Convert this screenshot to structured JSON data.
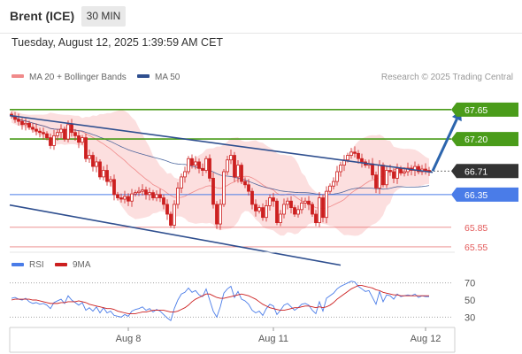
{
  "header": {
    "instrument": "Brent (ICE)",
    "timeframe": "30 MIN",
    "datetime": "Tuesday, August 12, 2025 1:39:59 AM CET"
  },
  "legend": {
    "bollinger_label": "MA 20 + Bollinger Bands",
    "ma50_label": "MA 50",
    "credit": "Research © 2025 Trading Central"
  },
  "colors": {
    "candle": "#cc1f1f",
    "bollinger_fill": "#fcd9d9",
    "bollinger_line": "#f08a8a",
    "ma50": "#2f4f8f",
    "resistance": "#4a9c1a",
    "support": "#4a7ce8",
    "support_minor": "#f19a9a",
    "current": "#333333",
    "trend": "#2f4f8f",
    "arrow": "#2c65ad",
    "rsi": "#4a7ce8",
    "rsi_ma": "#cc1f1f"
  },
  "chart_data": [
    {
      "type": "candlestick",
      "x_ticks": [
        "Aug 8",
        "Aug 11",
        "Aug 12"
      ],
      "ylim": [
        65.4,
        68.0
      ],
      "levels": [
        {
          "name": "resistance-2",
          "value": 67.65,
          "label": "67.65",
          "color": "#4a9c1a",
          "label_style": "filled"
        },
        {
          "name": "resistance-1",
          "value": 67.2,
          "label": "67.20",
          "color": "#4a9c1a",
          "label_style": "filled"
        },
        {
          "name": "last-price",
          "value": 66.71,
          "label": "66.71",
          "color": "#333333",
          "label_style": "filled"
        },
        {
          "name": "pivot",
          "value": 66.35,
          "label": "66.35",
          "color": "#4a7ce8",
          "label_style": "filled"
        },
        {
          "name": "support-1",
          "value": 65.85,
          "label": "65.85",
          "color": "#e35a5a",
          "label_style": "text"
        },
        {
          "name": "support-2",
          "value": 65.55,
          "label": "65.55",
          "color": "#e35a5a",
          "label_style": "text"
        }
      ],
      "trendlines": [
        {
          "name": "upper-channel",
          "from": [
            0,
            67.56
          ],
          "to": [
            119,
            66.69
          ]
        },
        {
          "name": "lower-channel",
          "from": [
            0,
            66.19
          ],
          "to": [
            93,
            65.27
          ]
        }
      ],
      "projection": {
        "from": [
          119,
          66.71
        ],
        "to": [
          127,
          67.64
        ]
      },
      "closes": [
        67.55,
        67.5,
        67.47,
        67.42,
        67.44,
        67.38,
        67.35,
        67.32,
        67.3,
        67.28,
        67.22,
        67.1,
        67.25,
        67.3,
        67.35,
        67.2,
        67.42,
        67.3,
        67.25,
        67.15,
        67.22,
        66.9,
        66.95,
        66.78,
        66.85,
        66.62,
        66.72,
        66.55,
        66.58,
        66.35,
        66.3,
        66.28,
        66.32,
        66.25,
        66.36,
        66.38,
        66.4,
        66.42,
        66.35,
        66.38,
        66.3,
        66.35,
        66.3,
        66.2,
        66.05,
        65.88,
        66.2,
        66.45,
        66.62,
        66.7,
        66.9,
        66.8,
        66.85,
        66.75,
        66.72,
        66.9,
        66.6,
        66.2,
        65.9,
        66.2,
        66.7,
        66.88,
        66.95,
        66.62,
        66.8,
        66.55,
        66.5,
        66.4,
        66.2,
        66.1,
        66.15,
        66.0,
        66.18,
        66.3,
        66.25,
        65.92,
        66.05,
        66.2,
        66.25,
        66.15,
        66.05,
        66.12,
        66.22,
        66.25,
        66.2,
        66.05,
        65.92,
        66.3,
        66.0,
        66.4,
        66.48,
        66.55,
        66.7,
        66.8,
        66.88,
        66.95,
        67.0,
        66.98,
        66.9,
        66.85,
        66.8,
        66.82,
        66.65,
        66.45,
        66.8,
        66.5,
        66.72,
        66.7,
        66.6,
        66.75,
        66.68,
        66.7,
        66.75,
        66.72,
        66.78,
        66.7,
        66.74,
        66.72,
        66.71
      ],
      "rsi": {
        "label": "RSI",
        "ma_label": "9MA",
        "ylim": [
          20,
          80
        ],
        "ticks": [
          70,
          50,
          30
        ],
        "values": [
          52,
          53,
          51,
          50,
          52,
          48,
          46,
          47,
          45,
          46,
          44,
          40,
          47,
          49,
          51,
          46,
          55,
          50,
          47,
          44,
          47,
          38,
          41,
          37,
          42,
          35,
          41,
          35,
          37,
          32,
          31,
          30,
          33,
          31,
          37,
          39,
          40,
          42,
          38,
          40,
          36,
          39,
          37,
          33,
          29,
          26,
          40,
          50,
          57,
          59,
          64,
          59,
          61,
          56,
          54,
          63,
          50,
          37,
          30,
          42,
          58,
          63,
          66,
          53,
          60,
          51,
          49,
          45,
          38,
          35,
          37,
          32,
          40,
          45,
          43,
          33,
          38,
          44,
          46,
          42,
          38,
          41,
          45,
          46,
          44,
          38,
          34,
          48,
          37,
          52,
          55,
          58,
          63,
          66,
          68,
          70,
          72,
          71,
          66,
          63,
          60,
          61,
          53,
          45,
          60,
          48,
          56,
          55,
          51,
          57,
          54,
          55,
          56,
          55,
          57,
          53,
          55,
          54,
          54
        ],
        "ma_values": [
          50,
          51,
          51,
          51,
          51,
          51,
          50,
          50,
          49,
          48,
          47,
          46,
          46,
          46,
          47,
          47,
          48,
          48,
          48,
          49,
          48,
          47,
          45,
          44,
          43,
          42,
          41,
          40,
          40,
          39,
          37,
          36,
          35,
          34,
          34,
          34,
          35,
          36,
          36,
          37,
          38,
          38,
          38,
          38,
          37,
          36,
          36,
          37,
          39,
          41,
          44,
          48,
          51,
          53,
          55,
          57,
          57,
          55,
          53,
          52,
          52,
          53,
          54,
          55,
          56,
          57,
          56,
          55,
          53,
          51,
          48,
          45,
          43,
          41,
          40,
          39,
          38,
          38,
          39,
          40,
          41,
          41,
          42,
          43,
          43,
          42,
          41,
          42,
          41,
          42,
          44,
          47,
          51,
          54,
          57,
          60,
          63,
          65,
          67,
          67,
          66,
          65,
          64,
          62,
          61,
          59,
          58,
          57,
          56,
          56,
          55,
          55,
          55,
          55,
          55,
          55,
          55,
          55,
          55
        ],
        "threshold_lines": [
          70,
          30
        ]
      },
      "overlay_params": {
        "ma20_window": 20,
        "bollinger_k": 2,
        "ma50_window": 50
      }
    }
  ]
}
